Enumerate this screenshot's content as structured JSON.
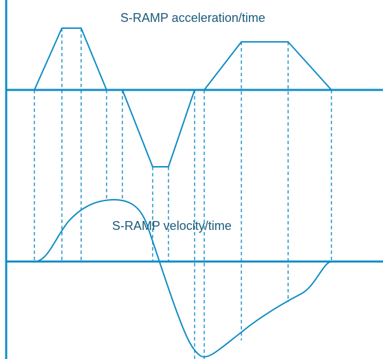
{
  "diagram": {
    "acceleration_label": "S-RAMP acceleration/time",
    "velocity_label": "S-RAMP velocity/time",
    "line_color": "#0e8cc4",
    "text_color": "#1a5a7a"
  }
}
